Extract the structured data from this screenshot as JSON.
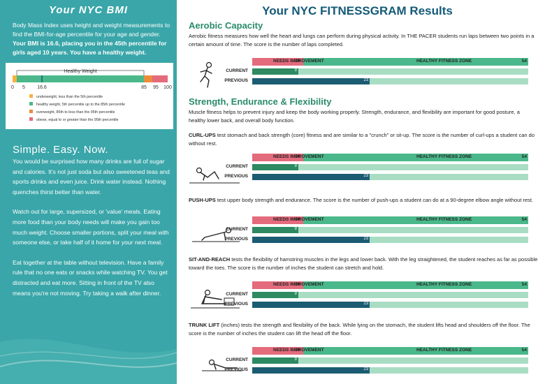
{
  "sidebar": {
    "bmi_title": "Your NYC BMI",
    "bmi_desc_1": "Body Mass Index uses height and weight measurements to find the BMI-for-age percentile for your age and gender.",
    "bmi_desc_2": "Your BMI is 16.6, placing you in the 45th percentile for girls aged 10 years. You have a healthy weight.",
    "scale_label": "Healthy Weight",
    "scale_ticks": [
      "0",
      "5",
      "16.6",
      "85",
      "95",
      "100"
    ],
    "legend": [
      {
        "color": "#f2b33d",
        "text": "underweight, less than the 5th percentile"
      },
      {
        "color": "#4ab88a",
        "text": "healthy weight, 5th percentile up to the 85th percentile"
      },
      {
        "color": "#ee8b3a",
        "text": "overweight, 85th to less than the 95th percentile"
      },
      {
        "color": "#e46b7c",
        "text": "obese, equal to or greater than the 95th percentile"
      }
    ],
    "simple_title": "Simple. Easy. Now.",
    "simple_p1": "You would be surprised how many drinks are full of sugar and calories. It's not just soda but also sweetened teas and sports drinks and even juice. Drink water instead. Nothing quenches thirst better than water.",
    "simple_p2": "Watch out for large, supersized, or 'value' meals. Eating more food than your body needs will make you gain too much weight. Choose smaller portions, split your meal with someone else, or take half of it home for your next meal.",
    "simple_p3": "Eat together at the table without television. Have a family rule that no one eats or snacks while watching TV. You get distracted and eat more. Sitting in front of the TV also means you're not moving. Try taking a walk after dinner."
  },
  "main": {
    "title": "Your NYC FITNESSGRAM Results",
    "aerobic_title": "Aerobic Capacity",
    "aerobic_text": "Aerobic fitness measures how well the heart and lungs can perform during physical activity. In THE PACER students run laps between two points in a certain amount of time. The score is the number of laps completed.",
    "strength_title": "Strength, Endurance & Flexibility",
    "strength_text": "Muscle fitness helps to prevent injury and keep the body working properly. Strength, endurance, and flexibility are important for good posture, a healthy lower back, and overall body function.",
    "curl_name": "CURL-UPS",
    "curl_text": "test stomach and back strength (core) fitness and are similar to a \"crunch\" or sit-up. The score is the number of curl-ups a student can do without rest.",
    "push_name": "PUSH-UPS",
    "push_text": "test upper body strength and endurance. The score is the number of push-ups a student can do at a 90-degree elbow angle without rest.",
    "sit_name": "SIT-AND-REACH",
    "sit_text": "tests the flexibility of hamstring muscles in the legs and lower back. With the leg straightened, the student reaches as far as possible toward the toes. The score is the number of inches the student can stretch and hold.",
    "trunk_name": "TRUNK LIFT",
    "trunk_text": "(inches) tests the strength and flexibility of the back. While lying on the stomach, the student lifts head and shoulders off the floor. The score is the number of inches the student can lift the head off the floor.",
    "needs_label": "NEEDS IMPROVEMENT",
    "zone_label": "HEALTHY FITNESS ZONE",
    "current_label": "CURRENT",
    "previous_label": "PREVIOUS",
    "colors": {
      "needs": "#e46b7c",
      "zone": "#4ab88a",
      "current": "#2d8a62",
      "previous": "#1b5c73",
      "track": "#a8ddc4"
    }
  },
  "chart_data": [
    {
      "type": "bar",
      "title": "Aerobic Capacity",
      "categories": [
        "CURRENT",
        "PREVIOUS"
      ],
      "values": [
        9,
        23
      ],
      "threshold": 10,
      "max": 54,
      "min_label": "10",
      "max_label": "54"
    },
    {
      "type": "bar",
      "title": "CURL-UPS",
      "categories": [
        "CURRENT",
        "PREVIOUS"
      ],
      "values": [
        9,
        23
      ],
      "threshold": 10,
      "max": 54,
      "min_label": "10",
      "max_label": "54"
    },
    {
      "type": "bar",
      "title": "PUSH-UPS",
      "categories": [
        "CURRENT",
        "PREVIOUS"
      ],
      "values": [
        9,
        23
      ],
      "threshold": 10,
      "max": 54,
      "min_label": "10",
      "max_label": "54"
    },
    {
      "type": "bar",
      "title": "SIT-AND-REACH",
      "categories": [
        "CURRENT",
        "PREVIOUS"
      ],
      "values": [
        9,
        23
      ],
      "threshold": 10,
      "max": 54,
      "min_label": "10",
      "max_label": "54"
    },
    {
      "type": "bar",
      "title": "TRUNK LIFT",
      "categories": [
        "CURRENT",
        "PREVIOUS"
      ],
      "values": [
        9,
        23
      ],
      "threshold": 10,
      "max": 54,
      "min_label": "10",
      "max_label": "54"
    }
  ]
}
